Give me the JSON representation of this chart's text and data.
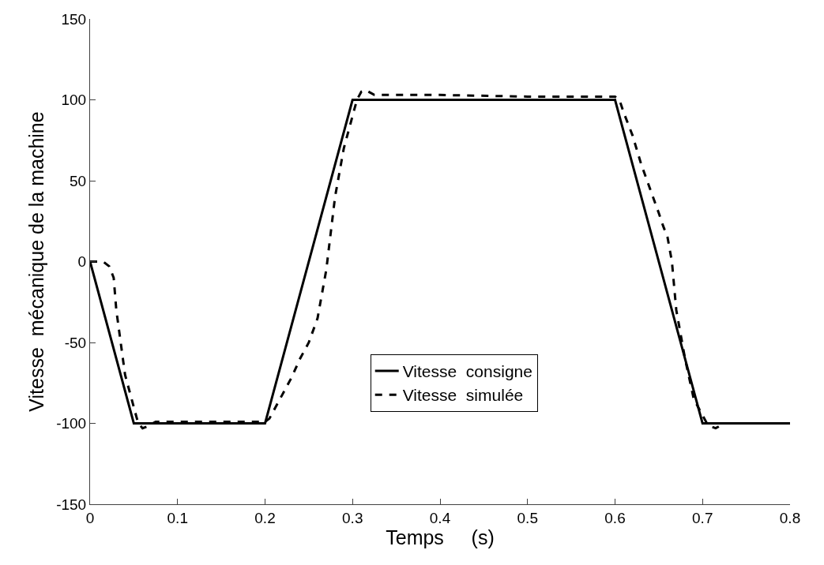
{
  "chart_data": {
    "type": "line",
    "xlabel": "Temps     (s)",
    "ylabel": "Vitesse  mécanique de la machine",
    "xlim": [
      0,
      0.8
    ],
    "xticks": [
      0,
      0.1,
      0.2,
      0.3,
      0.4,
      0.5,
      0.6,
      0.7,
      0.8
    ],
    "ylim": [
      -150,
      150
    ],
    "yticks": [
      -150,
      -100,
      -50,
      0,
      50,
      100,
      150
    ],
    "legend": "bottom",
    "marker": "none",
    "series": [
      {
        "name": "Vitesse  consigne",
        "color": "#000000",
        "line_style": "solid",
        "x": [
          0,
          0.05,
          0.2,
          0.3,
          0.6,
          0.7,
          0.8
        ],
        "values": [
          0,
          -100,
          -100,
          100,
          100,
          -100,
          -100
        ]
      },
      {
        "name": "Vitesse  simulée",
        "color": "#000000",
        "line_style": "dashed",
        "x": [
          0,
          0.015,
          0.022,
          0.027,
          0.03,
          0.04,
          0.05,
          0.055,
          0.06,
          0.065,
          0.075,
          0.2,
          0.205,
          0.21,
          0.22,
          0.23,
          0.24,
          0.25,
          0.26,
          0.27,
          0.28,
          0.29,
          0.3,
          0.305,
          0.31,
          0.315,
          0.325,
          0.4,
          0.5,
          0.6,
          0.605,
          0.61,
          0.62,
          0.63,
          0.64,
          0.65,
          0.655,
          0.66,
          0.665,
          0.67,
          0.68,
          0.69,
          0.7,
          0.705,
          0.71,
          0.715,
          0.725,
          0.8
        ],
        "values": [
          0,
          0,
          -3,
          -10,
          -30,
          -70,
          -90,
          -100,
          -103,
          -102,
          -99,
          -99,
          -97,
          -92,
          -82,
          -72,
          -60,
          -50,
          -35,
          -5,
          40,
          70,
          90,
          100,
          105,
          106,
          103,
          103,
          102,
          102,
          100,
          92,
          78,
          60,
          45,
          30,
          22,
          15,
          0,
          -30,
          -60,
          -85,
          -95,
          -100,
          -102,
          -103,
          -100,
          -100
        ]
      }
    ]
  }
}
